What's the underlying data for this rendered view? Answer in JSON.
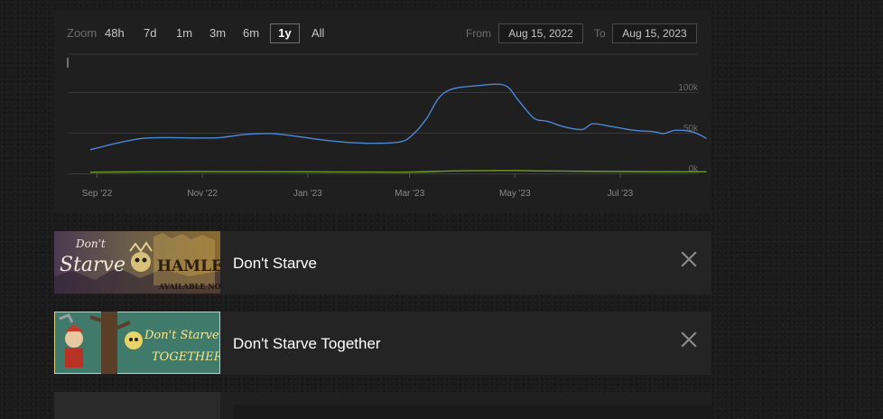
{
  "zoom": {
    "label": "Zoom",
    "buttons": [
      "48h",
      "7d",
      "1m",
      "3m",
      "6m",
      "1y",
      "All"
    ],
    "active": "1y"
  },
  "range": {
    "from_label": "From",
    "from_value": "Aug 15, 2022",
    "to_label": "To",
    "to_value": "Aug 15, 2023"
  },
  "chart_data": {
    "type": "line",
    "x_domain": [
      "2022-08-15",
      "2023-08-15"
    ],
    "ylim": [
      0,
      120000
    ],
    "y_ticks": [
      {
        "value": 0,
        "label": "0k"
      },
      {
        "value": 50000,
        "label": "50k"
      },
      {
        "value": 100000,
        "label": "100k"
      }
    ],
    "x_ticks": [
      {
        "date": "2022-09-01",
        "label": "Sep '22"
      },
      {
        "date": "2022-11-01",
        "label": "Nov '22"
      },
      {
        "date": "2023-01-01",
        "label": "Jan '23"
      },
      {
        "date": "2023-03-01",
        "label": "Mar '23"
      },
      {
        "date": "2023-05-01",
        "label": "May '23"
      },
      {
        "date": "2023-07-01",
        "label": "Jul '23"
      }
    ],
    "grid": true,
    "series": [
      {
        "color": "#4a88d8",
        "points": [
          [
            "2022-08-28",
            29000
          ],
          [
            "2022-09-12",
            37000
          ],
          [
            "2022-09-27",
            43000
          ],
          [
            "2022-10-12",
            44000
          ],
          [
            "2022-10-27",
            43500
          ],
          [
            "2022-11-11",
            44000
          ],
          [
            "2022-11-26",
            48000
          ],
          [
            "2022-12-11",
            49000
          ],
          [
            "2022-12-26",
            45500
          ],
          [
            "2023-01-10",
            41000
          ],
          [
            "2023-01-25",
            38000
          ],
          [
            "2023-02-09",
            37000
          ],
          [
            "2023-02-24",
            39000
          ],
          [
            "2023-03-03",
            48000
          ],
          [
            "2023-03-11",
            68000
          ],
          [
            "2023-03-18",
            93000
          ],
          [
            "2023-03-26",
            104000
          ],
          [
            "2023-04-10",
            108000
          ],
          [
            "2023-04-25",
            108500
          ],
          [
            "2023-05-03",
            90000
          ],
          [
            "2023-05-12",
            68000
          ],
          [
            "2023-05-20",
            64000
          ],
          [
            "2023-05-30",
            57000
          ],
          [
            "2023-06-09",
            54000
          ],
          [
            "2023-06-15",
            61000
          ],
          [
            "2023-06-25",
            58000
          ],
          [
            "2023-07-09",
            53000
          ],
          [
            "2023-07-20",
            51500
          ],
          [
            "2023-07-26",
            49000
          ],
          [
            "2023-08-02",
            53000
          ],
          [
            "2023-08-12",
            51000
          ],
          [
            "2023-08-20",
            43000
          ]
        ]
      },
      {
        "color": "#6ea024",
        "points": [
          [
            "2022-08-28",
            1500
          ],
          [
            "2022-10-27",
            2200
          ],
          [
            "2022-12-26",
            2000
          ],
          [
            "2023-02-24",
            1500
          ],
          [
            "2023-03-26",
            3000
          ],
          [
            "2023-04-25",
            3500
          ],
          [
            "2023-05-20",
            3000
          ],
          [
            "2023-07-09",
            2200
          ],
          [
            "2023-08-20",
            2000
          ]
        ]
      }
    ]
  },
  "games": [
    {
      "name": "Don't Starve",
      "thumb_text": [
        "Don't",
        "Starve",
        "HAMLET",
        "AVAILABLE NOW"
      ]
    },
    {
      "name": "Don't Starve Together",
      "thumb_text": [
        "Don't Starve",
        "TOGETHER"
      ]
    }
  ],
  "icons": {
    "close": "close-icon"
  },
  "colors": {
    "panel": "#1f1f1f",
    "row": "#242424",
    "accent_line": "#4a88d8",
    "secondary_line": "#6ea024"
  }
}
